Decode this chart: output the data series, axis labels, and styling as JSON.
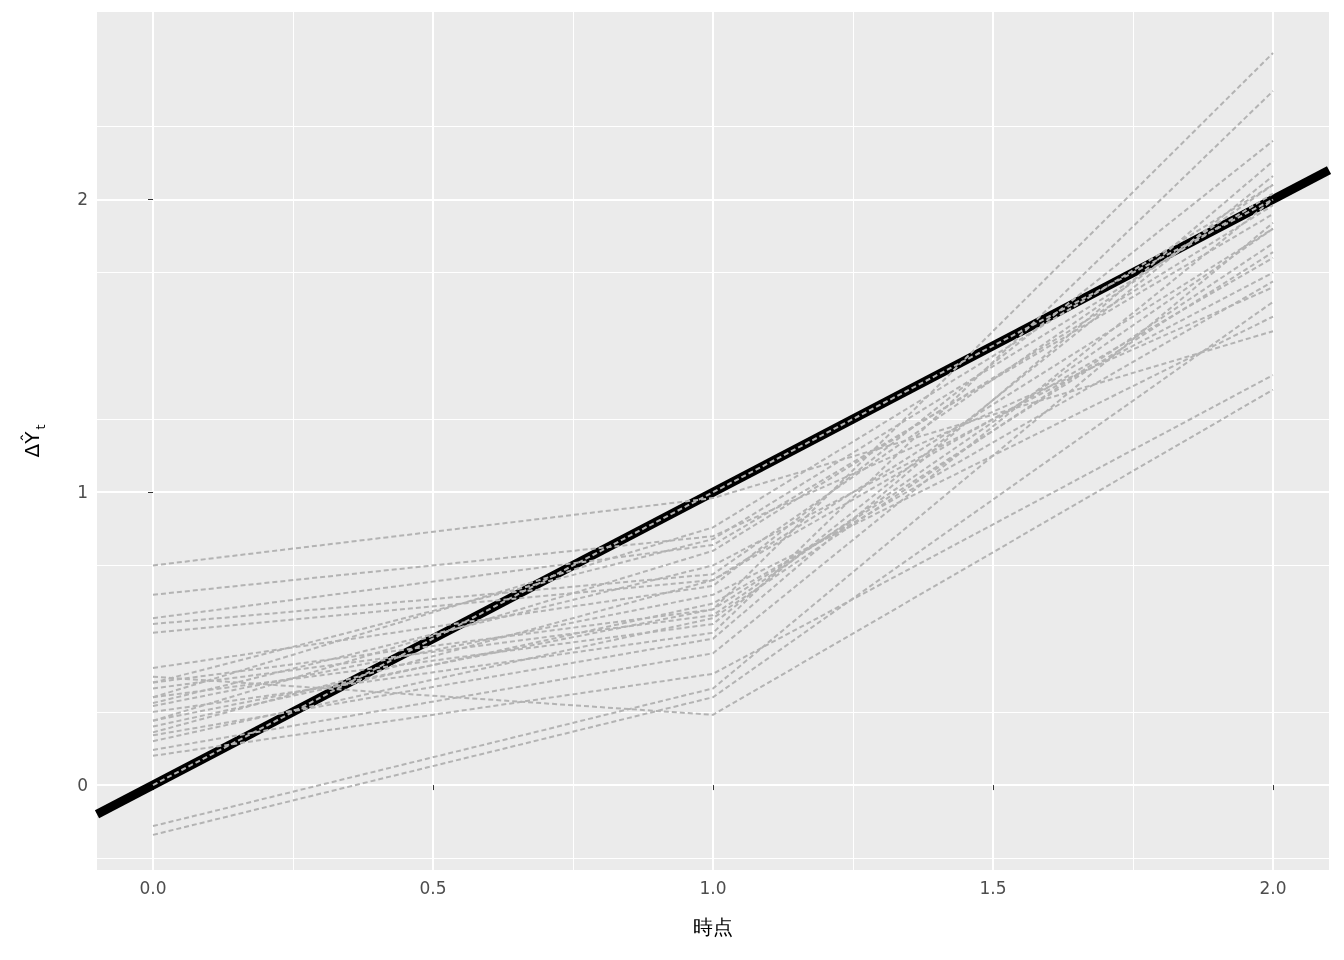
{
  "chart_data": {
    "type": "line",
    "xlabel": "時点",
    "ylabel": "ΔŶ$_{t}$",
    "xlim": [
      -0.1,
      2.1
    ],
    "ylim": [
      -0.29,
      2.64
    ],
    "xticks": [
      {
        "value": 0,
        "label": "0.0"
      },
      {
        "value": 0.5,
        "label": "0.5"
      },
      {
        "value": 1,
        "label": "1.0"
      },
      {
        "value": 1.5,
        "label": "1.5"
      },
      {
        "value": 2,
        "label": "2.0"
      }
    ],
    "yticks": [
      0,
      1,
      2
    ],
    "grid": true,
    "marker": "none",
    "x": [
      0,
      1,
      2
    ],
    "series": [
      {
        "color": "#000000",
        "line_style": "solid",
        "x": [
          -0.1,
          2.1
        ],
        "values": [
          -0.1,
          2.1
        ]
      },
      {
        "color": "#b3b3b3",
        "line_style": "dashed",
        "values": [
          0.75,
          0.98,
          1.55
        ]
      },
      {
        "color": "#b3b3b3",
        "line_style": "dashed",
        "values": [
          0.65,
          0.85,
          1.7
        ]
      },
      {
        "color": "#b3b3b3",
        "line_style": "dashed",
        "values": [
          0.57,
          0.82,
          1.95
        ]
      },
      {
        "color": "#b3b3b3",
        "line_style": "dashed",
        "values": [
          0.55,
          0.72,
          2.05
        ]
      },
      {
        "color": "#b3b3b3",
        "line_style": "dashed",
        "values": [
          0.52,
          0.7,
          1.8
        ]
      },
      {
        "color": "#b3b3b3",
        "line_style": "dashed",
        "values": [
          0.4,
          0.68,
          2.2
        ]
      },
      {
        "color": "#b3b3b3",
        "line_style": "dashed",
        "values": [
          0.37,
          0.24,
          1.35
        ]
      },
      {
        "color": "#b3b3b3",
        "line_style": "dashed",
        "values": [
          0.35,
          0.6,
          2.5
        ]
      },
      {
        "color": "#b3b3b3",
        "line_style": "dashed",
        "values": [
          0.33,
          0.58,
          1.9
        ]
      },
      {
        "color": "#b3b3b3",
        "line_style": "dashed",
        "values": [
          0.3,
          0.55,
          2.08
        ]
      },
      {
        "color": "#b3b3b3",
        "line_style": "dashed",
        "values": [
          0.27,
          0.65,
          1.6
        ]
      },
      {
        "color": "#b3b3b3",
        "line_style": "dashed",
        "values": [
          0.25,
          0.52,
          2.37
        ]
      },
      {
        "color": "#b3b3b3",
        "line_style": "dashed",
        "values": [
          0.22,
          0.8,
          1.98
        ]
      },
      {
        "color": "#b3b3b3",
        "line_style": "dashed",
        "values": [
          0.2,
          0.62,
          1.72
        ]
      },
      {
        "color": "#b3b3b3",
        "line_style": "dashed",
        "values": [
          0.17,
          0.5,
          2.13
        ]
      },
      {
        "color": "#b3b3b3",
        "line_style": "dashed",
        "values": [
          0.15,
          0.57,
          1.85
        ]
      },
      {
        "color": "#b3b3b3",
        "line_style": "dashed",
        "values": [
          0.12,
          0.45,
          2.0
        ]
      },
      {
        "color": "#b3b3b3",
        "line_style": "dashed",
        "values": [
          0.1,
          0.38,
          1.4
        ]
      },
      {
        "color": "#b3b3b3",
        "line_style": "dashed",
        "values": [
          0.0,
          1.0,
          2.0
        ]
      },
      {
        "color": "#b3b3b3",
        "line_style": "dashed",
        "values": [
          -0.14,
          0.33,
          1.92
        ]
      },
      {
        "color": "#b3b3b3",
        "line_style": "dashed",
        "values": [
          -0.17,
          0.3,
          1.65
        ]
      },
      {
        "color": "#b3b3b3",
        "line_style": "dashed",
        "values": [
          0.35,
          0.84,
          2.02
        ]
      },
      {
        "color": "#b3b3b3",
        "line_style": "dashed",
        "values": [
          0.28,
          0.75,
          1.75
        ]
      },
      {
        "color": "#b3b3b3",
        "line_style": "dashed",
        "values": [
          0.18,
          0.7,
          1.9
        ]
      },
      {
        "color": "#b3b3b3",
        "line_style": "dashed",
        "values": [
          0.22,
          0.6,
          1.82
        ]
      },
      {
        "color": "#b3b3b3",
        "line_style": "dashed",
        "values": [
          0.3,
          0.88,
          2.05
        ]
      }
    ]
  }
}
